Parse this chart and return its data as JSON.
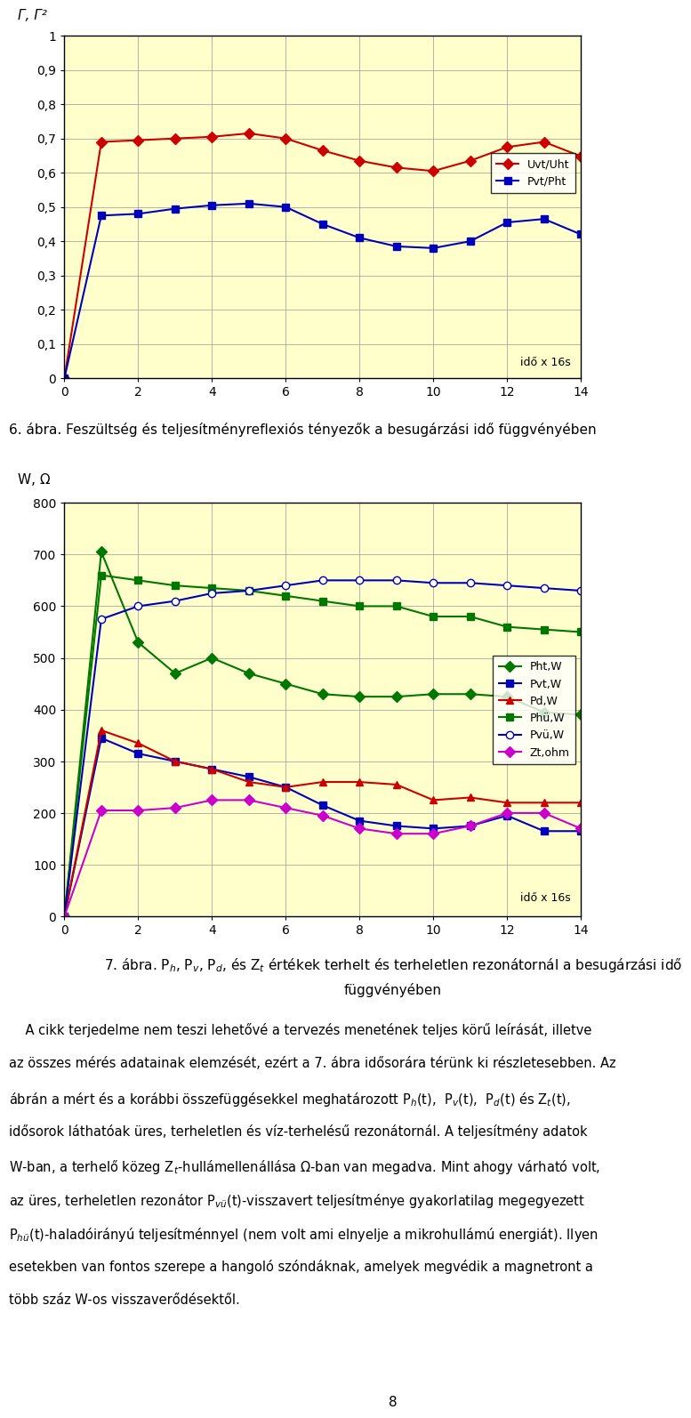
{
  "chart1": {
    "ylabel": "Γ, Γ²",
    "xlabel": "idő x 16s",
    "bg_color": "#ffffcc",
    "ylim": [
      0,
      1
    ],
    "xlim": [
      0,
      14
    ],
    "yticks": [
      0,
      0.1,
      0.2,
      0.3,
      0.4,
      0.5,
      0.6,
      0.7,
      0.8,
      0.9,
      1
    ],
    "xticks": [
      0,
      2,
      4,
      6,
      8,
      10,
      12,
      14
    ],
    "ytick_labels": [
      "0",
      "0,1",
      "0,2",
      "0,3",
      "0,4",
      "0,5",
      "0,6",
      "0,7",
      "0,8",
      "0,9",
      "1"
    ],
    "series": [
      {
        "name": "Uvt/Uht",
        "x": [
          0,
          1,
          2,
          3,
          4,
          5,
          6,
          7,
          8,
          9,
          10,
          11,
          12,
          13,
          14
        ],
        "y": [
          0,
          0.69,
          0.695,
          0.7,
          0.705,
          0.715,
          0.7,
          0.665,
          0.635,
          0.615,
          0.605,
          0.635,
          0.675,
          0.69,
          0.648
        ],
        "color": "#cc0000",
        "marker": "D",
        "markersize": 6,
        "linewidth": 1.5
      },
      {
        "name": "Pvt/Pht",
        "x": [
          0,
          1,
          2,
          3,
          4,
          5,
          6,
          7,
          8,
          9,
          10,
          11,
          12,
          13,
          14
        ],
        "y": [
          0,
          0.475,
          0.48,
          0.495,
          0.505,
          0.51,
          0.5,
          0.45,
          0.41,
          0.385,
          0.38,
          0.4,
          0.455,
          0.465,
          0.42
        ],
        "color": "#0000bb",
        "marker": "s",
        "markersize": 6,
        "linewidth": 1.5
      }
    ]
  },
  "caption1": "6. ábra. Feszültség és teljesítményreflexió s tényezők a besugárzási idő függvényében",
  "chart2": {
    "ylabel": "W, Ω",
    "xlabel": "idő x 16s",
    "bg_color": "#ffffcc",
    "ylim": [
      0,
      800
    ],
    "xlim": [
      0,
      14
    ],
    "yticks": [
      0,
      100,
      200,
      300,
      400,
      500,
      600,
      700,
      800
    ],
    "xticks": [
      0,
      2,
      4,
      6,
      8,
      10,
      12,
      14
    ],
    "series": [
      {
        "name": "Pht,W",
        "x": [
          0,
          1,
          2,
          3,
          4,
          5,
          6,
          7,
          8,
          9,
          10,
          11,
          12,
          13,
          14
        ],
        "y": [
          0,
          705,
          530,
          470,
          500,
          470,
          450,
          430,
          425,
          425,
          430,
          430,
          425,
          395,
          390
        ],
        "color": "#007700",
        "marker": "D",
        "markersize": 6,
        "linewidth": 1.5,
        "markerfacecolor": "#007700"
      },
      {
        "name": "Pvt,W",
        "x": [
          0,
          1,
          2,
          3,
          4,
          5,
          6,
          7,
          8,
          9,
          10,
          11,
          12,
          13,
          14
        ],
        "y": [
          0,
          345,
          315,
          300,
          285,
          270,
          250,
          215,
          185,
          175,
          170,
          175,
          195,
          165,
          165
        ],
        "color": "#0000bb",
        "marker": "s",
        "markersize": 6,
        "linewidth": 1.5,
        "markerfacecolor": "#0000bb"
      },
      {
        "name": "Pd,W",
        "x": [
          0,
          1,
          2,
          3,
          4,
          5,
          6,
          7,
          8,
          9,
          10,
          11,
          12,
          13,
          14
        ],
        "y": [
          0,
          360,
          335,
          300,
          285,
          260,
          250,
          260,
          260,
          255,
          225,
          230,
          220,
          220,
          220
        ],
        "color": "#cc0000",
        "marker": "^",
        "markersize": 6,
        "linewidth": 1.5,
        "markerfacecolor": "#cc0000"
      },
      {
        "name": "Phü,W",
        "x": [
          0,
          1,
          2,
          3,
          4,
          5,
          6,
          7,
          8,
          9,
          10,
          11,
          12,
          13,
          14
        ],
        "y": [
          0,
          660,
          650,
          640,
          635,
          630,
          620,
          610,
          600,
          600,
          580,
          580,
          560,
          555,
          550
        ],
        "color": "#007700",
        "marker": "s",
        "markersize": 6,
        "linewidth": 1.5,
        "markerfacecolor": "#007700"
      },
      {
        "name": "Pvü,W",
        "x": [
          0,
          1,
          2,
          3,
          4,
          5,
          6,
          7,
          8,
          9,
          10,
          11,
          12,
          13,
          14
        ],
        "y": [
          0,
          575,
          600,
          610,
          625,
          630,
          640,
          650,
          650,
          650,
          645,
          645,
          640,
          635,
          630
        ],
        "color": "#0000bb",
        "marker": "o",
        "markersize": 6,
        "linewidth": 1.5,
        "markerfacecolor": "white"
      },
      {
        "name": "Zt,ohm",
        "x": [
          0,
          1,
          2,
          3,
          4,
          5,
          6,
          7,
          8,
          9,
          10,
          11,
          12,
          13,
          14
        ],
        "y": [
          0,
          205,
          205,
          210,
          225,
          225,
          210,
          195,
          170,
          160,
          160,
          175,
          200,
          200,
          170
        ],
        "color": "#cc00cc",
        "marker": "D",
        "markersize": 6,
        "linewidth": 1.5,
        "markerfacecolor": "#cc00cc"
      }
    ]
  },
  "caption2_line1": "7. ábra. P",
  "caption2_line2": "függvényében",
  "body_text_lines": [
    "A cikk terjedelme nem teszi lehetővé a tervezés menetének teljes körű leírását, illetve",
    "az összes mérés adatainak elemzését, ezért a 7. ábra idősorára térünk ki részletesebben. Az",
    "ábrán a mért és a korábbi összefüggésekkel meghatározott P",
    "idősorok láthatóak üres, terheletlen és víz-terhelésű rezonátornál. A teljesítmény adatok",
    "W-ban, a terhelő közeg Z",
    "az üres, terheletlen rezonátor P",
    "P",
    "esetekben van fontos szerepe a hangoló szóndáknak, amelyek megvédik a magnetront a",
    "több száz W-os visszaverődésektől."
  ],
  "page_number": "8"
}
